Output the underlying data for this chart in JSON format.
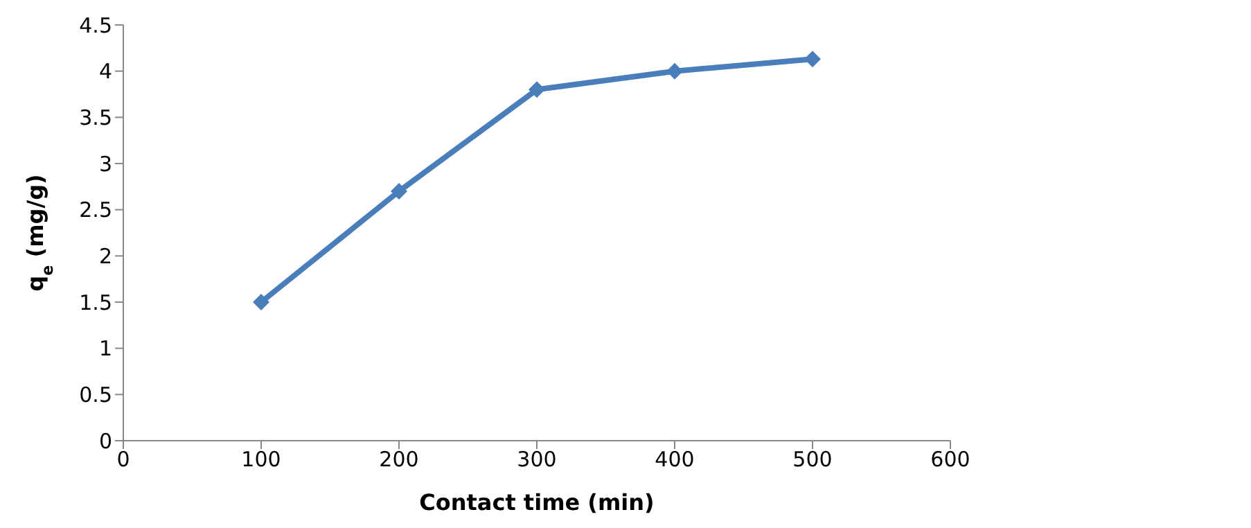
{
  "chart_data": {
    "type": "line",
    "xlabel": "Contact time (min)",
    "ylabel": "q$_{e}$ (mg/g)",
    "x": [
      100,
      200,
      300,
      400,
      500
    ],
    "series": [
      {
        "color": "#4a7ebb",
        "values": [
          1.5,
          2.7,
          3.8,
          4.0,
          4.13
        ]
      }
    ],
    "xlim": [
      0,
      600
    ],
    "xticks": [
      0,
      100,
      200,
      300,
      400,
      500,
      600
    ],
    "ylim": [
      0,
      4.5
    ],
    "yticks": [
      0,
      0.5,
      1,
      1.5,
      2,
      2.5,
      3,
      3.5,
      4,
      4.5
    ],
    "grid": false,
    "legend": false,
    "marker": "diamond",
    "line_style": "solid"
  }
}
